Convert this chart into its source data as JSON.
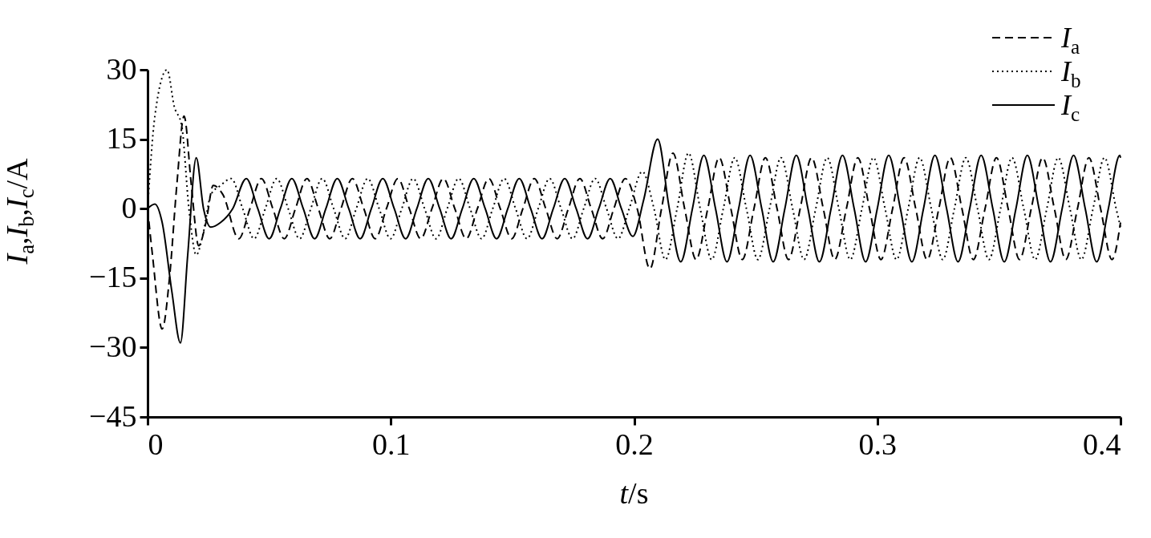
{
  "chart_data": {
    "type": "line",
    "xlabel": "t/s",
    "ylabel": "I$_{a}$,I$_{b}$,I$_{c}$/A",
    "xlim": [
      0,
      0.4
    ],
    "xticks": [
      0,
      0.1,
      0.2,
      0.3,
      0.4
    ],
    "ylim": [
      -45,
      30
    ],
    "yticks": [
      -45,
      -30,
      -15,
      0,
      15,
      30
    ],
    "grid": false,
    "legend": "top right",
    "marker": "none",
    "series": [
      {
        "name": "I$_{a}$",
        "color": "#000000",
        "line_style": "dashed",
        "x": [
          0,
          0.002,
          0.006,
          0.009,
          0.012,
          0.015,
          0.018,
          0.021,
          0.024,
          0.027,
          0.031,
          0.0375,
          0.0421,
          0.0468,
          0.0515,
          0.0562,
          0.0608,
          0.0655,
          0.0702,
          0.0749,
          0.0795,
          0.0842,
          0.0889,
          0.0936,
          0.0982,
          0.1029,
          0.1076,
          0.1123,
          0.1169,
          0.1216,
          0.1263,
          0.131,
          0.1356,
          0.1403,
          0.145,
          0.1497,
          0.1543,
          0.159,
          0.1637,
          0.1684,
          0.173,
          0.1777,
          0.1824,
          0.1871,
          0.1917,
          0.1964,
          0.2013,
          0.2065,
          0.2113,
          0.216,
          0.2208,
          0.2255,
          0.2303,
          0.235,
          0.2398,
          0.2445,
          0.2493,
          0.254,
          0.2588,
          0.2635,
          0.2683,
          0.273,
          0.2778,
          0.2825,
          0.2873,
          0.292,
          0.2968,
          0.3015,
          0.3063,
          0.311,
          0.3158,
          0.3205,
          0.3253,
          0.33,
          0.3348,
          0.3395,
          0.3443,
          0.349,
          0.3538,
          0.3585,
          0.3633,
          0.368,
          0.3728,
          0.3775,
          0.3823,
          0.387,
          0.3918,
          0.3965,
          0.4
        ],
        "values": [
          0,
          -10,
          -26,
          -15,
          5,
          20,
          5,
          -8,
          -3,
          5,
          3,
          -6.5,
          0,
          6.5,
          0,
          -6.5,
          0,
          6.5,
          0,
          -6.5,
          0,
          6.5,
          0,
          -6.5,
          0,
          6.5,
          0,
          -6.5,
          0,
          6.5,
          0,
          -6.5,
          0,
          6.5,
          0,
          -6.5,
          0,
          6.5,
          0,
          -6.5,
          0,
          6.5,
          0,
          -6.5,
          0,
          6.5,
          0,
          -13,
          0,
          12,
          0,
          -11,
          0,
          11,
          0,
          -11,
          0,
          11,
          0,
          -11,
          0,
          11,
          0,
          -11,
          0,
          11,
          0,
          -11,
          0,
          11,
          0,
          -11,
          0,
          11,
          0,
          -11,
          0,
          11,
          0,
          -11,
          0,
          11,
          0,
          -11,
          0,
          11,
          0,
          -11,
          -3
        ]
      },
      {
        "name": "I$_{b}$",
        "color": "#000000",
        "line_style": "dotted",
        "x": [
          0,
          0.003,
          0.008,
          0.011,
          0.014,
          0.017,
          0.02,
          0.023,
          0.026,
          0.03,
          0.0344,
          0.0391,
          0.0438,
          0.0484,
          0.0531,
          0.0578,
          0.0625,
          0.0671,
          0.0718,
          0.0765,
          0.0812,
          0.0858,
          0.0905,
          0.0952,
          0.0999,
          0.1045,
          0.1092,
          0.1139,
          0.1186,
          0.1232,
          0.1279,
          0.1326,
          0.1373,
          0.1419,
          0.1466,
          0.1513,
          0.156,
          0.1606,
          0.1653,
          0.17,
          0.1747,
          0.1793,
          0.184,
          0.1887,
          0.1934,
          0.198,
          0.2034,
          0.2082,
          0.2129,
          0.2177,
          0.2224,
          0.2272,
          0.2319,
          0.2367,
          0.2414,
          0.2462,
          0.2509,
          0.2557,
          0.2604,
          0.2652,
          0.2699,
          0.2747,
          0.2794,
          0.2842,
          0.2889,
          0.2937,
          0.2984,
          0.3032,
          0.3079,
          0.3127,
          0.3174,
          0.3222,
          0.3269,
          0.3317,
          0.3364,
          0.3412,
          0.3459,
          0.3507,
          0.3554,
          0.3602,
          0.3649,
          0.3697,
          0.3744,
          0.3792,
          0.3839,
          0.3887,
          0.3934,
          0.3982,
          0.4
        ],
        "values": [
          0,
          20,
          30,
          22,
          18,
          0,
          -10,
          -5,
          3,
          5,
          6.5,
          0,
          -6.5,
          0,
          6.5,
          0,
          -6.5,
          0,
          6.5,
          0,
          -6.5,
          0,
          6.5,
          0,
          -6.5,
          0,
          6.5,
          0,
          -6.5,
          0,
          6.5,
          0,
          -6.5,
          0,
          6.5,
          0,
          -6.5,
          0,
          6.5,
          0,
          -6.5,
          0,
          6.5,
          0,
          -6.5,
          0,
          8,
          0,
          -11,
          0,
          12,
          0,
          -11,
          0,
          11,
          0,
          -11,
          0,
          11,
          0,
          -11,
          0,
          11,
          0,
          -11,
          0,
          11,
          0,
          -11,
          0,
          11,
          0,
          -11,
          0,
          11,
          0,
          -11,
          0,
          11,
          0,
          -11,
          0,
          11,
          0,
          -11,
          0,
          11,
          0,
          -4
        ]
      },
      {
        "name": "I$_{c}$",
        "color": "#000000",
        "line_style": "solid",
        "x": [
          0,
          0.003,
          0.006,
          0.01,
          0.0135,
          0.0165,
          0.02,
          0.023,
          0.026,
          0.03,
          0.035,
          0.0406,
          0.0453,
          0.05,
          0.0546,
          0.0593,
          0.064,
          0.0687,
          0.0733,
          0.078,
          0.0827,
          0.0874,
          0.092,
          0.0967,
          0.1014,
          0.1061,
          0.1107,
          0.1154,
          0.1201,
          0.1248,
          0.1294,
          0.1341,
          0.1388,
          0.1435,
          0.1481,
          0.1528,
          0.1575,
          0.1622,
          0.1668,
          0.1715,
          0.1762,
          0.1809,
          0.1855,
          0.1902,
          0.1948,
          0.1995,
          0.204,
          0.2097,
          0.2145,
          0.2192,
          0.224,
          0.2287,
          0.2335,
          0.2382,
          0.243,
          0.2477,
          0.2525,
          0.2572,
          0.262,
          0.2667,
          0.2715,
          0.2762,
          0.281,
          0.2857,
          0.2905,
          0.2952,
          0.3,
          0.3047,
          0.3095,
          0.3142,
          0.319,
          0.3237,
          0.3285,
          0.3332,
          0.338,
          0.3427,
          0.3475,
          0.3522,
          0.357,
          0.3617,
          0.3665,
          0.3712,
          0.376,
          0.3807,
          0.3855,
          0.3902,
          0.395,
          0.3997,
          0.4
        ],
        "values": [
          0,
          1,
          -3,
          -18,
          -29,
          -10,
          11,
          0,
          -4,
          -3,
          0,
          6.5,
          0,
          -6.5,
          0,
          6.5,
          0,
          -6.5,
          0,
          6.5,
          0,
          -6.5,
          0,
          6.5,
          0,
          -6.5,
          0,
          6.5,
          0,
          -6.5,
          0,
          6.5,
          0,
          -6.5,
          0,
          6.5,
          0,
          -6.5,
          0,
          6.5,
          0,
          -6.5,
          0,
          6.5,
          0,
          -6,
          2,
          15,
          0,
          -11.5,
          0,
          11.5,
          0,
          -11.5,
          0,
          11.5,
          0,
          -11.5,
          0,
          11.5,
          0,
          -11.5,
          0,
          11.5,
          0,
          -11.5,
          0,
          11.5,
          0,
          -11.5,
          0,
          11.5,
          0,
          -11.5,
          0,
          11.5,
          0,
          -11.5,
          0,
          11.5,
          0,
          -11.5,
          0,
          11.5,
          0,
          -11.5,
          0,
          11.5,
          11
        ]
      }
    ]
  }
}
